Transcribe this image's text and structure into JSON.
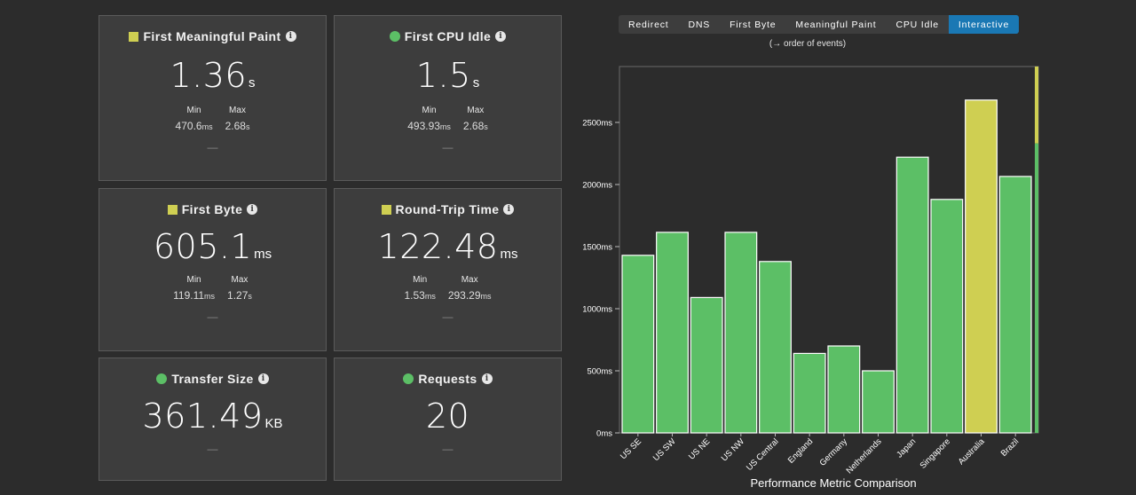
{
  "cards": {
    "fmp": {
      "title": "First Meaningful Paint",
      "value": "1.36",
      "unit": "s",
      "min_label": "Min",
      "min_value": "470.6",
      "min_unit": "ms",
      "max_label": "Max",
      "max_value": "2.68",
      "max_unit": "s",
      "dash": "—"
    },
    "cpu": {
      "title": "First CPU Idle",
      "value": "1.5",
      "unit": "s",
      "min_label": "Min",
      "min_value": "493.93",
      "min_unit": "ms",
      "max_label": "Max",
      "max_value": "2.68",
      "max_unit": "s",
      "dash": "—"
    },
    "fb": {
      "title": "First Byte",
      "value": "605.1",
      "unit": "ms",
      "min_label": "Min",
      "min_value": "119.11",
      "min_unit": "ms",
      "max_label": "Max",
      "max_value": "1.27",
      "max_unit": "s",
      "dash": "—"
    },
    "rtt": {
      "title": "Round-Trip Time",
      "value": "122.48",
      "unit": "ms",
      "min_label": "Min",
      "min_value": "1.53",
      "min_unit": "ms",
      "max_label": "Max",
      "max_value": "293.29",
      "max_unit": "ms",
      "dash": "—"
    },
    "ts": {
      "title": "Transfer Size",
      "value": "361.49",
      "unit": "KB",
      "dash": "—"
    },
    "req": {
      "title": "Requests",
      "value": "20",
      "dash": "—"
    }
  },
  "info_glyph": "i",
  "colors": {
    "yellow": "#cfcf52",
    "green": "#5cbf66",
    "active_tab": "#1a78b4"
  },
  "metric_tabs": [
    "Redirect",
    "DNS",
    "First Byte",
    "Meaningful Paint",
    "CPU Idle",
    "Interactive"
  ],
  "active_tab": "Interactive",
  "order_note": "(→ order of events)",
  "chart_data": {
    "type": "bar",
    "title": "",
    "xlabel": "Performance Metric Comparison",
    "ylabel": "",
    "categories": [
      "US SE",
      "US SW",
      "US NE",
      "US NW",
      "US Central",
      "England",
      "Germany",
      "Netherlands",
      "Japan",
      "Singapore",
      "Australia",
      "Brazil"
    ],
    "values": [
      1430,
      1615,
      1090,
      1615,
      1380,
      640,
      700,
      500,
      2220,
      1880,
      2680,
      2065
    ],
    "highlight": "Australia",
    "ylim": [
      0,
      2950
    ],
    "yticks": [
      0,
      500,
      1000,
      1500,
      2000,
      2500
    ],
    "ytick_labels": [
      "0ms",
      "500ms",
      "1000ms",
      "1500ms",
      "2000ms",
      "2500ms"
    ],
    "grid": false
  }
}
